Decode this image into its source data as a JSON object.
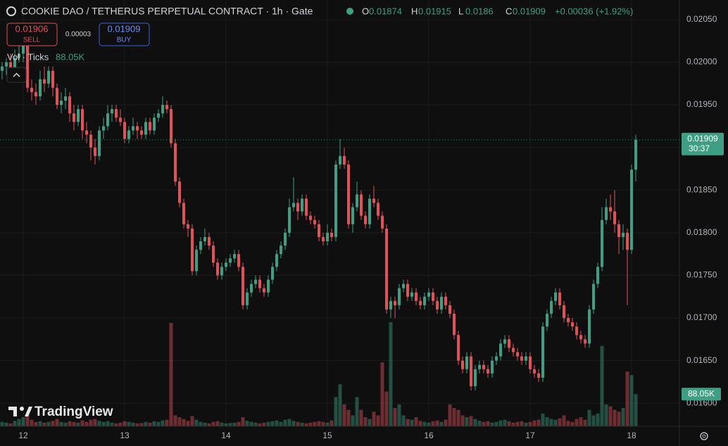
{
  "chart_data": {
    "type": "candlestick",
    "title": "COOKIE DAO / TETHERUS PERPETUAL CONTRACT · 1h · Gate",
    "ohlc_labels": [
      "O",
      "H",
      "L",
      "C"
    ],
    "change": "+0.00036 (+1.92%)",
    "trade": {
      "sell_price": "0.01906",
      "sell": "SELL",
      "spread": "0.00003",
      "buy_price": "0.01909",
      "buy": "BUY"
    },
    "volume_legend": "Vol · Ticks",
    "volume_label": "88.05K",
    "countdown": "30:37",
    "watermark": "TradingView",
    "up_color": "#3f9f84",
    "down_color": "#e0525a",
    "grid": true,
    "xlim": [
      -5.5,
      155.33
    ],
    "ylim": [
      0.01573,
      0.02073
    ],
    "xticks": [
      {
        "value": 0,
        "label": "12"
      },
      {
        "value": 24,
        "label": "13"
      },
      {
        "value": 48,
        "label": "14"
      },
      {
        "value": 72,
        "label": "15"
      },
      {
        "value": 96,
        "label": "16"
      },
      {
        "value": 120,
        "label": "17"
      },
      {
        "value": 144,
        "label": "18"
      }
    ],
    "yticks": [
      {
        "value": 0.016,
        "label": "0.01600"
      },
      {
        "value": 0.0165,
        "label": "0.01650"
      },
      {
        "value": 0.017,
        "label": "0.01700"
      },
      {
        "value": 0.0175,
        "label": "0.01750"
      },
      {
        "value": 0.018,
        "label": "0.01800"
      },
      {
        "value": 0.0185,
        "label": "0.01850"
      },
      {
        "value": 0.019,
        "label": "0.01900"
      },
      {
        "value": 0.0195,
        "label": "0.01950"
      },
      {
        "value": 0.02,
        "label": "0.02000"
      },
      {
        "value": 0.0205,
        "label": "0.02050"
      }
    ],
    "x": [
      -5,
      -4,
      -3,
      -2,
      -1,
      0,
      1,
      2,
      3,
      4,
      5,
      6,
      7,
      8,
      9,
      10,
      11,
      12,
      13,
      14,
      15,
      16,
      17,
      18,
      19,
      20,
      21,
      22,
      23,
      24,
      25,
      26,
      27,
      28,
      29,
      30,
      31,
      32,
      33,
      34,
      35,
      36,
      37,
      38,
      39,
      40,
      41,
      42,
      43,
      44,
      45,
      46,
      47,
      48,
      49,
      50,
      51,
      52,
      53,
      54,
      55,
      56,
      57,
      58,
      59,
      60,
      61,
      62,
      63,
      64,
      65,
      66,
      67,
      68,
      69,
      70,
      71,
      72,
      73,
      74,
      75,
      76,
      77,
      78,
      79,
      80,
      81,
      82,
      83,
      84,
      85,
      86,
      87,
      88,
      89,
      90,
      91,
      92,
      93,
      94,
      95,
      96,
      97,
      98,
      99,
      100,
      101,
      102,
      103,
      104,
      105,
      106,
      107,
      108,
      109,
      110,
      111,
      112,
      113,
      114,
      115,
      116,
      117,
      118,
      119,
      120,
      121,
      122,
      123,
      124,
      125,
      126,
      127,
      128,
      129,
      130,
      131,
      132,
      133,
      134,
      135,
      136,
      137,
      138,
      139,
      140,
      141,
      142,
      143,
      144,
      145
    ],
    "ohlc": [
      [
        0.0199,
        0.02,
        0.0198,
        0.01995
      ],
      [
        0.01995,
        0.02005,
        0.01985,
        0.02
      ],
      [
        0.02,
        0.0201,
        0.01985,
        0.0199
      ],
      [
        0.0199,
        0.02015,
        0.01985,
        0.02005
      ],
      [
        0.02005,
        0.0202,
        0.02,
        0.0201
      ],
      [
        0.0201,
        0.0203,
        0.02,
        0.0202
      ],
      [
        0.0202,
        0.02025,
        0.01965,
        0.0197
      ],
      [
        0.0197,
        0.0198,
        0.01955,
        0.01965
      ],
      [
        0.01965,
        0.01975,
        0.0195,
        0.0196
      ],
      [
        0.0196,
        0.0199,
        0.01955,
        0.0198
      ],
      [
        0.0198,
        0.01995,
        0.01965,
        0.01975
      ],
      [
        0.01975,
        0.01995,
        0.0197,
        0.0199
      ],
      [
        0.0199,
        0.01995,
        0.0196,
        0.0197
      ],
      [
        0.0197,
        0.01975,
        0.01945,
        0.0195
      ],
      [
        0.0195,
        0.01965,
        0.0194,
        0.01955
      ],
      [
        0.01955,
        0.0197,
        0.01945,
        0.0196
      ],
      [
        0.0196,
        0.01965,
        0.0193,
        0.0194
      ],
      [
        0.0194,
        0.0195,
        0.0192,
        0.0193
      ],
      [
        0.0193,
        0.0195,
        0.01925,
        0.01945
      ],
      [
        0.01945,
        0.0195,
        0.0191,
        0.0192
      ],
      [
        0.0192,
        0.0193,
        0.01905,
        0.01915
      ],
      [
        0.01915,
        0.0192,
        0.01885,
        0.019
      ],
      [
        0.019,
        0.0191,
        0.0188,
        0.0189
      ],
      [
        0.0189,
        0.01925,
        0.01885,
        0.0192
      ],
      [
        0.0192,
        0.01935,
        0.0191,
        0.01925
      ],
      [
        0.01925,
        0.0195,
        0.0192,
        0.0194
      ],
      [
        0.0194,
        0.0195,
        0.0193,
        0.01945
      ],
      [
        0.01945,
        0.0195,
        0.0193,
        0.01935
      ],
      [
        0.01935,
        0.01945,
        0.01925,
        0.0193
      ],
      [
        0.0193,
        0.01935,
        0.01905,
        0.0191
      ],
      [
        0.0191,
        0.01925,
        0.01905,
        0.0192
      ],
      [
        0.0192,
        0.01935,
        0.01915,
        0.01925
      ],
      [
        0.01925,
        0.0193,
        0.0191,
        0.0192
      ],
      [
        0.0192,
        0.01925,
        0.0191,
        0.01915
      ],
      [
        0.01915,
        0.01935,
        0.0191,
        0.0193
      ],
      [
        0.0193,
        0.01935,
        0.01915,
        0.0192
      ],
      [
        0.0192,
        0.0194,
        0.01915,
        0.01935
      ],
      [
        0.01935,
        0.01945,
        0.0193,
        0.0194
      ],
      [
        0.0194,
        0.0196,
        0.01935,
        0.0195
      ],
      [
        0.0195,
        0.01955,
        0.0194,
        0.01945
      ],
      [
        0.01945,
        0.0195,
        0.019,
        0.01905
      ],
      [
        0.01905,
        0.0191,
        0.01855,
        0.0186
      ],
      [
        0.0186,
        0.01865,
        0.0183,
        0.01835
      ],
      [
        0.01835,
        0.0184,
        0.01805,
        0.0181
      ],
      [
        0.0181,
        0.01815,
        0.01795,
        0.01805
      ],
      [
        0.01805,
        0.0181,
        0.0175,
        0.01755
      ],
      [
        0.01755,
        0.01785,
        0.0175,
        0.0178
      ],
      [
        0.0178,
        0.01795,
        0.01775,
        0.0179
      ],
      [
        0.0179,
        0.01805,
        0.01785,
        0.01795
      ],
      [
        0.01795,
        0.018,
        0.0178,
        0.01785
      ],
      [
        0.01785,
        0.0179,
        0.0176,
        0.01765
      ],
      [
        0.01765,
        0.0177,
        0.01745,
        0.0175
      ],
      [
        0.0175,
        0.01765,
        0.01745,
        0.0176
      ],
      [
        0.0176,
        0.0177,
        0.01755,
        0.01765
      ],
      [
        0.01765,
        0.01775,
        0.0176,
        0.0177
      ],
      [
        0.0177,
        0.0178,
        0.01765,
        0.01775
      ],
      [
        0.01775,
        0.0178,
        0.01755,
        0.0176
      ],
      [
        0.0176,
        0.01765,
        0.0171,
        0.01715
      ],
      [
        0.01715,
        0.01735,
        0.0171,
        0.0173
      ],
      [
        0.0173,
        0.01745,
        0.01725,
        0.0174
      ],
      [
        0.0174,
        0.0175,
        0.01735,
        0.01745
      ],
      [
        0.01745,
        0.0175,
        0.0173,
        0.01735
      ],
      [
        0.01735,
        0.0174,
        0.01725,
        0.0173
      ],
      [
        0.0173,
        0.0175,
        0.01725,
        0.01745
      ],
      [
        0.01745,
        0.01765,
        0.0174,
        0.0176
      ],
      [
        0.0176,
        0.0178,
        0.01755,
        0.01775
      ],
      [
        0.01775,
        0.0179,
        0.0177,
        0.01785
      ],
      [
        0.01785,
        0.01805,
        0.0178,
        0.018
      ],
      [
        0.018,
        0.0184,
        0.01795,
        0.0183
      ],
      [
        0.0183,
        0.01865,
        0.01825,
        0.01835
      ],
      [
        0.01835,
        0.0184,
        0.01815,
        0.01825
      ],
      [
        0.01825,
        0.01845,
        0.0182,
        0.0184
      ],
      [
        0.0184,
        0.01845,
        0.01815,
        0.0182
      ],
      [
        0.0182,
        0.01825,
        0.0181,
        0.01815
      ],
      [
        0.01815,
        0.0182,
        0.01805,
        0.0181
      ],
      [
        0.0181,
        0.01815,
        0.0179,
        0.01795
      ],
      [
        0.01795,
        0.018,
        0.01785,
        0.0179
      ],
      [
        0.0179,
        0.0181,
        0.01785,
        0.018
      ],
      [
        0.018,
        0.01805,
        0.0179,
        0.01795
      ],
      [
        0.01795,
        0.01885,
        0.0179,
        0.0188
      ],
      [
        0.0188,
        0.0191,
        0.01875,
        0.0189
      ],
      [
        0.0189,
        0.019,
        0.01875,
        0.0188
      ],
      [
        0.0188,
        0.01885,
        0.01805,
        0.0181
      ],
      [
        0.0181,
        0.01835,
        0.018,
        0.0183
      ],
      [
        0.0183,
        0.0186,
        0.01825,
        0.01845
      ],
      [
        0.01845,
        0.0185,
        0.01815,
        0.0182
      ],
      [
        0.0182,
        0.01825,
        0.01805,
        0.0181
      ],
      [
        0.0181,
        0.01845,
        0.01805,
        0.0184
      ],
      [
        0.0184,
        0.01855,
        0.0183,
        0.01835
      ],
      [
        0.01835,
        0.0184,
        0.01815,
        0.0182
      ],
      [
        0.0182,
        0.01825,
        0.018,
        0.01805
      ],
      [
        0.01805,
        0.0181,
        0.01705,
        0.0171
      ],
      [
        0.0171,
        0.01725,
        0.017,
        0.0172
      ],
      [
        0.0172,
        0.01725,
        0.017,
        0.01715
      ],
      [
        0.01715,
        0.0174,
        0.0171,
        0.01735
      ],
      [
        0.01735,
        0.01745,
        0.0173,
        0.0174
      ],
      [
        0.0174,
        0.01745,
        0.0172,
        0.01725
      ],
      [
        0.01725,
        0.01735,
        0.0172,
        0.0173
      ],
      [
        0.0173,
        0.01735,
        0.01715,
        0.0172
      ],
      [
        0.0172,
        0.01725,
        0.0171,
        0.01715
      ],
      [
        0.01715,
        0.0173,
        0.0171,
        0.01725
      ],
      [
        0.01725,
        0.01735,
        0.0172,
        0.0173
      ],
      [
        0.0173,
        0.01735,
        0.01715,
        0.0172
      ],
      [
        0.0172,
        0.01725,
        0.01705,
        0.0171
      ],
      [
        0.0171,
        0.0173,
        0.01705,
        0.01725
      ],
      [
        0.01725,
        0.0173,
        0.0171,
        0.01715
      ],
      [
        0.01715,
        0.0172,
        0.017,
        0.01705
      ],
      [
        0.01705,
        0.0171,
        0.01675,
        0.0168
      ],
      [
        0.0168,
        0.01685,
        0.01645,
        0.0165
      ],
      [
        0.0165,
        0.01655,
        0.01635,
        0.0164
      ],
      [
        0.0164,
        0.0166,
        0.01635,
        0.01655
      ],
      [
        0.01655,
        0.0166,
        0.01615,
        0.0162
      ],
      [
        0.0162,
        0.01645,
        0.01615,
        0.0164
      ],
      [
        0.0164,
        0.0165,
        0.01635,
        0.01645
      ],
      [
        0.01645,
        0.0165,
        0.01635,
        0.0164
      ],
      [
        0.0164,
        0.01645,
        0.0163,
        0.01635
      ],
      [
        0.01635,
        0.01655,
        0.0163,
        0.0165
      ],
      [
        0.0165,
        0.0166,
        0.01645,
        0.01655
      ],
      [
        0.01655,
        0.01675,
        0.0165,
        0.0167
      ],
      [
        0.0167,
        0.0168,
        0.01665,
        0.01675
      ],
      [
        0.01675,
        0.0168,
        0.0166,
        0.01665
      ],
      [
        0.01665,
        0.0167,
        0.01655,
        0.0166
      ],
      [
        0.0166,
        0.01665,
        0.0165,
        0.01655
      ],
      [
        0.01655,
        0.0166,
        0.01645,
        0.0165
      ],
      [
        0.0165,
        0.0166,
        0.01645,
        0.01655
      ],
      [
        0.01655,
        0.0166,
        0.01635,
        0.0164
      ],
      [
        0.0164,
        0.01645,
        0.0163,
        0.01635
      ],
      [
        0.01635,
        0.0164,
        0.01625,
        0.0163
      ],
      [
        0.0163,
        0.01695,
        0.01625,
        0.0169
      ],
      [
        0.0169,
        0.0171,
        0.01685,
        0.01705
      ],
      [
        0.01705,
        0.01725,
        0.017,
        0.0172
      ],
      [
        0.0172,
        0.01735,
        0.01715,
        0.0173
      ],
      [
        0.0173,
        0.01735,
        0.0171,
        0.01715
      ],
      [
        0.01715,
        0.0172,
        0.01695,
        0.017
      ],
      [
        0.017,
        0.01705,
        0.0169,
        0.01695
      ],
      [
        0.01695,
        0.017,
        0.01685,
        0.0169
      ],
      [
        0.0169,
        0.01695,
        0.01675,
        0.0168
      ],
      [
        0.0168,
        0.01685,
        0.0167,
        0.01675
      ],
      [
        0.01675,
        0.0168,
        0.01665,
        0.0167
      ],
      [
        0.0167,
        0.01715,
        0.01665,
        0.0171
      ],
      [
        0.0171,
        0.01745,
        0.01705,
        0.0174
      ],
      [
        0.0174,
        0.01765,
        0.01735,
        0.0176
      ],
      [
        0.0176,
        0.0183,
        0.01755,
        0.01815
      ],
      [
        0.01815,
        0.0184,
        0.0181,
        0.0183
      ],
      [
        0.0183,
        0.01845,
        0.01815,
        0.01825
      ],
      [
        0.01825,
        0.0185,
        0.018,
        0.0181
      ],
      [
        0.0181,
        0.01815,
        0.01775,
        0.01795
      ],
      [
        0.01795,
        0.0181,
        0.0178,
        0.018
      ],
      [
        0.018,
        0.01805,
        0.01715,
        0.0178
      ],
      [
        0.0178,
        0.0188,
        0.01775,
        0.01874
      ],
      [
        0.01874,
        0.01915,
        0.0186,
        0.01909
      ]
    ],
    "volume": [
      12,
      10,
      8,
      15,
      20,
      25,
      30,
      18,
      12,
      14,
      10,
      12,
      15,
      20,
      12,
      10,
      14,
      12,
      10,
      16,
      12,
      18,
      20,
      15,
      12,
      14,
      10,
      8,
      10,
      14,
      12,
      10,
      8,
      9,
      12,
      10,
      14,
      12,
      16,
      18,
      283,
      30,
      25,
      20,
      15,
      28,
      18,
      12,
      10,
      8,
      12,
      14,
      10,
      8,
      9,
      10,
      12,
      25,
      15,
      12,
      10,
      8,
      10,
      12,
      14,
      16,
      12,
      18,
      20,
      15,
      12,
      10,
      8,
      10,
      12,
      14,
      12,
      10,
      16,
      80,
      115,
      60,
      45,
      30,
      80,
      45,
      25,
      20,
      40,
      30,
      175,
      95,
      285,
      50,
      60,
      30,
      20,
      18,
      25,
      15,
      12,
      10,
      14,
      16,
      12,
      18,
      60,
      50,
      45,
      30,
      25,
      28,
      20,
      15,
      12,
      14,
      10,
      12,
      16,
      18,
      14,
      10,
      12,
      14,
      10,
      12,
      16,
      18,
      35,
      25,
      20,
      18,
      22,
      30,
      15,
      12,
      20,
      25,
      18,
      45,
      30,
      35,
      220,
      60,
      55,
      45,
      40,
      50,
      150,
      140,
      88.05
    ]
  }
}
